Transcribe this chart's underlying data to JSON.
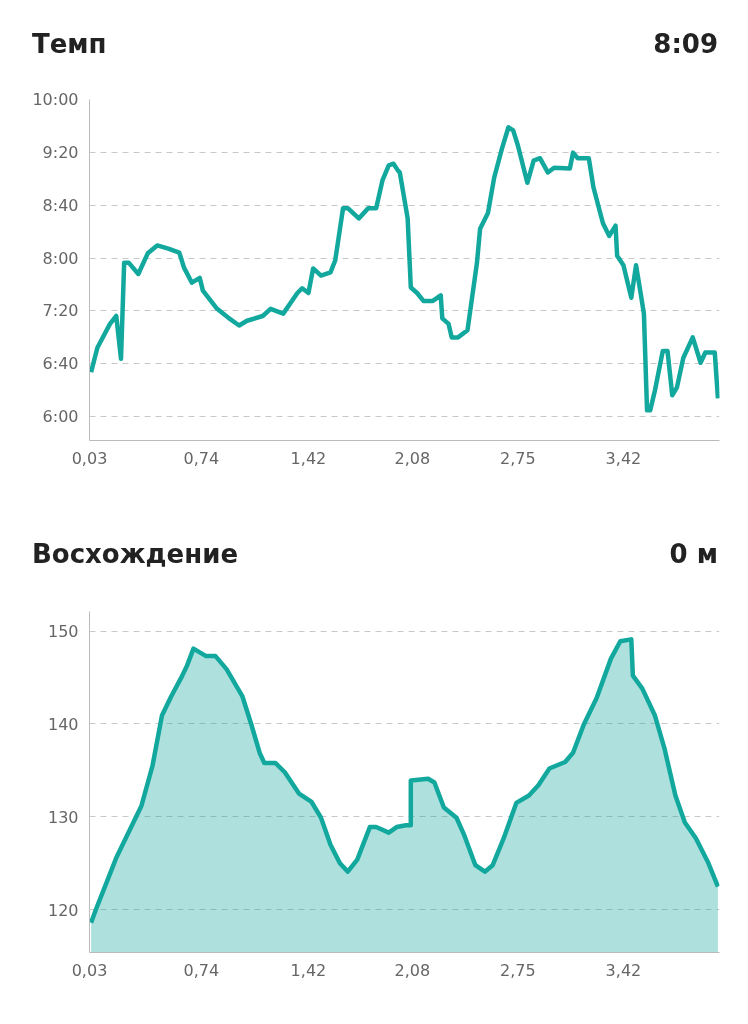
{
  "chart_data": [
    {
      "type": "line",
      "title": "Темп",
      "annotations": [
        "8:09"
      ],
      "series": [
        {
          "color": "#13a89e",
          "x": [
            0.04,
            0.08,
            0.16,
            0.2,
            0.23,
            0.25,
            0.28,
            0.34,
            0.4,
            0.46,
            0.53,
            0.6,
            0.63,
            0.68,
            0.73,
            0.75,
            0.84,
            0.91,
            0.98,
            1.03,
            1.13,
            1.18,
            1.26,
            1.35,
            1.38,
            1.42,
            1.45,
            1.5,
            1.56,
            1.59,
            1.64,
            1.67,
            1.74,
            1.8,
            1.85,
            1.89,
            1.93,
            1.96,
            1.99,
            2.0,
            2.02,
            2.05,
            2.07,
            2.11,
            2.15,
            2.21,
            2.26,
            2.27,
            2.31,
            2.33,
            2.37,
            2.43,
            2.49,
            2.51,
            2.56,
            2.6,
            2.65,
            2.69,
            2.72,
            2.75,
            2.81,
            2.85,
            2.89,
            2.94,
            2.98,
            3.08,
            3.1,
            3.13,
            3.2,
            3.23,
            3.29,
            3.33,
            3.37,
            3.38,
            3.42,
            3.47,
            3.5,
            3.53,
            3.55,
            3.57,
            3.59,
            3.62,
            3.67,
            3.7,
            3.73,
            3.76,
            3.8,
            3.86,
            3.91,
            3.94,
            4.0,
            4.02
          ],
          "values": [
            6.56,
            6.87,
            7.17,
            7.27,
            6.73,
            7.94,
            7.94,
            7.8,
            8.06,
            8.16,
            8.12,
            8.07,
            7.88,
            7.69,
            7.75,
            7.59,
            7.36,
            7.25,
            7.15,
            7.21,
            7.27,
            7.36,
            7.3,
            7.56,
            7.62,
            7.56,
            7.87,
            7.78,
            7.82,
            7.97,
            8.63,
            8.63,
            8.5,
            8.63,
            8.63,
            8.98,
            9.17,
            9.19,
            9.1,
            9.08,
            8.85,
            8.5,
            7.63,
            7.56,
            7.46,
            7.46,
            7.53,
            7.24,
            7.17,
            7.0,
            7.0,
            7.09,
            7.94,
            8.37,
            8.57,
            9.02,
            9.39,
            9.65,
            9.61,
            9.42,
            8.95,
            9.23,
            9.26,
            9.08,
            9.14,
            9.13,
            9.33,
            9.26,
            9.26,
            8.89,
            8.44,
            8.28,
            8.41,
            8.03,
            7.91,
            7.5,
            7.91,
            7.55,
            7.3,
            6.08,
            6.08,
            6.33,
            6.83,
            6.83,
            6.27,
            6.37,
            6.74,
            7.0,
            6.68,
            6.81,
            6.81,
            6.23
          ]
        }
      ],
      "xlim": [
        0.03,
        4.03
      ],
      "ylim": [
        5.7,
        10.0
      ],
      "xticks": [
        {
          "value": 0.03,
          "label": "0,03"
        },
        {
          "value": 0.74,
          "label": "0,74"
        },
        {
          "value": 1.42,
          "label": "1,42"
        },
        {
          "value": 2.08,
          "label": "2,08"
        },
        {
          "value": 2.75,
          "label": "2,75"
        },
        {
          "value": 3.42,
          "label": "3,42"
        }
      ],
      "yticks": [
        {
          "value": 6.0,
          "label": "6:00"
        },
        {
          "value": 6.667,
          "label": "6:40"
        },
        {
          "value": 7.333,
          "label": "7:20"
        },
        {
          "value": 8.0,
          "label": "8:00"
        },
        {
          "value": 8.667,
          "label": "8:40"
        },
        {
          "value": 9.333,
          "label": "9:20"
        },
        {
          "value": 10.0,
          "label": "10:00"
        }
      ],
      "grid": "y",
      "line_style": "solid"
    },
    {
      "type": "area",
      "title": "Восхождение",
      "annotations": [
        "0 м"
      ],
      "series": [
        {
          "color": "#13a89e",
          "x": [
            0.04,
            0.07,
            0.14,
            0.2,
            0.28,
            0.36,
            0.43,
            0.49,
            0.55,
            0.61,
            0.65,
            0.69,
            0.77,
            0.83,
            0.9,
            1.0,
            1.06,
            1.11,
            1.14,
            1.21,
            1.27,
            1.36,
            1.44,
            1.5,
            1.56,
            1.62,
            1.67,
            1.73,
            1.81,
            1.85,
            1.93,
            1.98,
            2.04,
            2.07,
            2.07,
            2.18,
            2.22,
            2.28,
            2.36,
            2.41,
            2.48,
            2.54,
            2.59,
            2.66,
            2.74,
            2.82,
            2.88,
            2.95,
            3.05,
            3.1,
            3.17,
            3.25,
            3.34,
            3.4,
            3.47,
            3.48,
            3.54,
            3.62,
            3.68,
            3.75,
            3.81,
            3.88,
            3.96,
            4.02
          ],
          "values": [
            118.6,
            120.0,
            123.0,
            125.6,
            128.4,
            131.2,
            135.5,
            140.9,
            143.0,
            144.9,
            146.3,
            148.1,
            147.3,
            147.3,
            145.9,
            143.0,
            139.8,
            136.9,
            135.8,
            135.8,
            134.8,
            132.5,
            131.6,
            129.9,
            127.0,
            125.0,
            124.1,
            125.4,
            128.9,
            128.9,
            128.3,
            128.9,
            129.1,
            129.1,
            133.9,
            134.1,
            133.7,
            131.0,
            129.9,
            128.0,
            124.8,
            124.1,
            124.8,
            127.7,
            131.5,
            132.3,
            133.4,
            135.2,
            135.9,
            136.9,
            140.0,
            142.8,
            147.0,
            148.9,
            149.1,
            145.2,
            143.8,
            140.9,
            137.4,
            132.3,
            129.4,
            127.7,
            125.0,
            122.5
          ]
        }
      ],
      "xlim": [
        0.03,
        4.03
      ],
      "ylim": [
        115.4,
        152.1
      ],
      "xticks": [
        {
          "value": 0.03,
          "label": "0,03"
        },
        {
          "value": 0.74,
          "label": "0,74"
        },
        {
          "value": 1.42,
          "label": "1,42"
        },
        {
          "value": 2.08,
          "label": "2,08"
        },
        {
          "value": 2.75,
          "label": "2,75"
        },
        {
          "value": 3.42,
          "label": "3,42"
        }
      ],
      "yticks": [
        120,
        130,
        140,
        150
      ],
      "grid": "y",
      "line_style": "solid"
    }
  ]
}
